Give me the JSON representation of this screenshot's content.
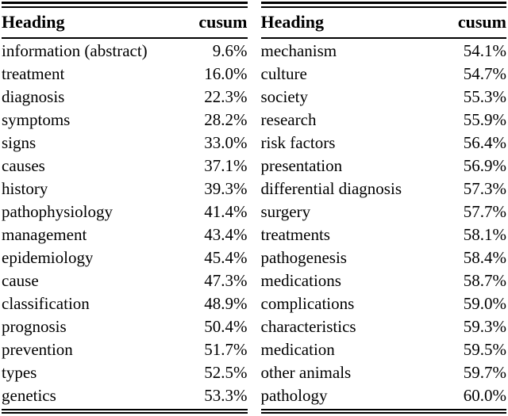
{
  "page": {
    "background_color": "#ffffff",
    "text_color": "#000000",
    "description": "Two side-by-side table halves listing section headings and cumulative percentage (cusum)"
  },
  "tables": [
    {
      "columns": {
        "heading": "Heading",
        "cusum": "cusum"
      },
      "rows": [
        {
          "heading": "information (abstract)",
          "cusum": "9.6%"
        },
        {
          "heading": "treatment",
          "cusum": "16.0%"
        },
        {
          "heading": "diagnosis",
          "cusum": "22.3%"
        },
        {
          "heading": "symptoms",
          "cusum": "28.2%"
        },
        {
          "heading": "signs",
          "cusum": "33.0%"
        },
        {
          "heading": "causes",
          "cusum": "37.1%"
        },
        {
          "heading": "history",
          "cusum": "39.3%"
        },
        {
          "heading": "pathophysiology",
          "cusum": "41.4%"
        },
        {
          "heading": "management",
          "cusum": "43.4%"
        },
        {
          "heading": "epidemiology",
          "cusum": "45.4%"
        },
        {
          "heading": "cause",
          "cusum": "47.3%"
        },
        {
          "heading": "classification",
          "cusum": "48.9%"
        },
        {
          "heading": "prognosis",
          "cusum": "50.4%"
        },
        {
          "heading": "prevention",
          "cusum": "51.7%"
        },
        {
          "heading": "types",
          "cusum": "52.5%"
        },
        {
          "heading": "genetics",
          "cusum": "53.3%"
        }
      ]
    },
    {
      "columns": {
        "heading": "Heading",
        "cusum": "cusum"
      },
      "rows": [
        {
          "heading": "mechanism",
          "cusum": "54.1%"
        },
        {
          "heading": "culture",
          "cusum": "54.7%"
        },
        {
          "heading": "society",
          "cusum": "55.3%"
        },
        {
          "heading": "research",
          "cusum": "55.9%"
        },
        {
          "heading": "risk factors",
          "cusum": "56.4%"
        },
        {
          "heading": "presentation",
          "cusum": "56.9%"
        },
        {
          "heading": "differential diagnosis",
          "cusum": "57.3%"
        },
        {
          "heading": "surgery",
          "cusum": "57.7%"
        },
        {
          "heading": "treatments",
          "cusum": "58.1%"
        },
        {
          "heading": "pathogenesis",
          "cusum": "58.4%"
        },
        {
          "heading": "medications",
          "cusum": "58.7%"
        },
        {
          "heading": "complications",
          "cusum": "59.0%"
        },
        {
          "heading": "characteristics",
          "cusum": "59.3%"
        },
        {
          "heading": "medication",
          "cusum": "59.5%"
        },
        {
          "heading": "other animals",
          "cusum": "59.7%"
        },
        {
          "heading": "pathology",
          "cusum": "60.0%"
        }
      ]
    }
  ],
  "chart_data": {
    "type": "table",
    "title": "",
    "columns": [
      "Heading",
      "cusum"
    ],
    "rows": [
      [
        "information (abstract)",
        "9.6%"
      ],
      [
        "treatment",
        "16.0%"
      ],
      [
        "diagnosis",
        "22.3%"
      ],
      [
        "symptoms",
        "28.2%"
      ],
      [
        "signs",
        "33.0%"
      ],
      [
        "causes",
        "37.1%"
      ],
      [
        "history",
        "39.3%"
      ],
      [
        "pathophysiology",
        "41.4%"
      ],
      [
        "management",
        "43.4%"
      ],
      [
        "epidemiology",
        "45.4%"
      ],
      [
        "cause",
        "47.3%"
      ],
      [
        "classification",
        "48.9%"
      ],
      [
        "prognosis",
        "50.4%"
      ],
      [
        "prevention",
        "51.7%"
      ],
      [
        "types",
        "52.5%"
      ],
      [
        "genetics",
        "53.3%"
      ],
      [
        "mechanism",
        "54.1%"
      ],
      [
        "culture",
        "54.7%"
      ],
      [
        "society",
        "55.3%"
      ],
      [
        "research",
        "55.9%"
      ],
      [
        "risk factors",
        "56.4%"
      ],
      [
        "presentation",
        "56.9%"
      ],
      [
        "differential diagnosis",
        "57.3%"
      ],
      [
        "surgery",
        "57.7%"
      ],
      [
        "treatments",
        "58.1%"
      ],
      [
        "pathogenesis",
        "58.4%"
      ],
      [
        "medications",
        "58.7%"
      ],
      [
        "complications",
        "59.0%"
      ],
      [
        "characteristics",
        "59.3%"
      ],
      [
        "medication",
        "59.5%"
      ],
      [
        "other animals",
        "59.7%"
      ],
      [
        "pathology",
        "60.0%"
      ]
    ]
  }
}
